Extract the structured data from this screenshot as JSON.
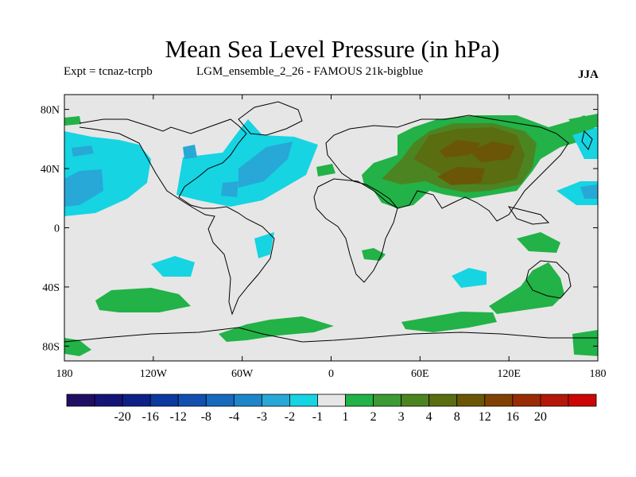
{
  "title": "Mean Sea Level Pressure (in hPa)",
  "expt_label": "Expt = tcnaz-tcrpb",
  "run_label": "LGM_ensemble_2_26 - FAMOUS 21k-bigblue",
  "season": "JJA",
  "chart_data": {
    "type": "heatmap",
    "projection": "equirectangular",
    "xlim": [
      -180,
      180
    ],
    "ylim": [
      -90,
      90
    ],
    "x_ticks": [
      {
        "value": -180,
        "label": "180"
      },
      {
        "value": -120,
        "label": "120W"
      },
      {
        "value": -60,
        "label": "60W"
      },
      {
        "value": 0,
        "label": "0"
      },
      {
        "value": 60,
        "label": "60E"
      },
      {
        "value": 120,
        "label": "120E"
      },
      {
        "value": 180,
        "label": "180"
      }
    ],
    "y_ticks": [
      {
        "value": 80,
        "label": "80N"
      },
      {
        "value": 40,
        "label": "40N"
      },
      {
        "value": 0,
        "label": "0"
      },
      {
        "value": -40,
        "label": "40S"
      },
      {
        "value": -80,
        "label": "80S"
      }
    ],
    "colorbar": {
      "colors": [
        "#230d63",
        "#141476",
        "#0c2088",
        "#0b3a9e",
        "#1150b0",
        "#1769bd",
        "#1d86c9",
        "#27a8d6",
        "#16d4e2",
        "#e6e6e6",
        "#22b247",
        "#3c9b32",
        "#4d8422",
        "#5a6d10",
        "#6a5606",
        "#7f4203",
        "#992c05",
        "#b41707",
        "#cc0606"
      ],
      "labels": [
        "-20",
        "-16",
        "-12",
        "-8",
        "-4",
        "-3",
        "-2",
        "-1",
        "1",
        "2",
        "3",
        "4",
        "8",
        "12",
        "16",
        "20"
      ],
      "unit": "hPa"
    },
    "regions": [
      {
        "level": -1,
        "lon": [
          -180,
          -120
        ],
        "lat": [
          20,
          56
        ]
      },
      {
        "level": -2,
        "lon": [
          -180,
          -155
        ],
        "lat": [
          22,
          42
        ]
      },
      {
        "level": -1,
        "lon": [
          -120,
          -15
        ],
        "lat": [
          15,
          60
        ]
      },
      {
        "level": -2,
        "lon": [
          -75,
          -35
        ],
        "lat": [
          20,
          50
        ]
      },
      {
        "level": 2,
        "lon": [
          20,
          165
        ],
        "lat": [
          20,
          78
        ]
      },
      {
        "level": 3,
        "lon": [
          40,
          150
        ],
        "lat": [
          25,
          72
        ]
      },
      {
        "level": 4,
        "lon": [
          75,
          135
        ],
        "lat": [
          27,
          65
        ]
      },
      {
        "level": 2,
        "lon": [
          -160,
          -105
        ],
        "lat": [
          -58,
          -45
        ]
      },
      {
        "level": 2,
        "lon": [
          -60,
          -10
        ],
        "lat": [
          -80,
          -68
        ]
      },
      {
        "level": 2,
        "lon": [
          15,
          65
        ],
        "lat": [
          -80,
          -64
        ]
      },
      {
        "level": 2,
        "lon": [
          120,
          170
        ],
        "lat": [
          -60,
          -28
        ]
      },
      {
        "level": 2,
        "lon": [
          150,
          180
        ],
        "lat": [
          65,
          90
        ]
      },
      {
        "level": 2,
        "lon": [
          160,
          180
        ],
        "lat": [
          -85,
          -74
        ]
      },
      {
        "level": -1,
        "lon": [
          -120,
          -95
        ],
        "lat": [
          -35,
          -25
        ]
      },
      {
        "level": -1,
        "lon": [
          85,
          105
        ],
        "lat": [
          -43,
          -33
        ]
      },
      {
        "level": -1,
        "lon": [
          155,
          180
        ],
        "lat": [
          20,
          40
        ]
      }
    ]
  }
}
